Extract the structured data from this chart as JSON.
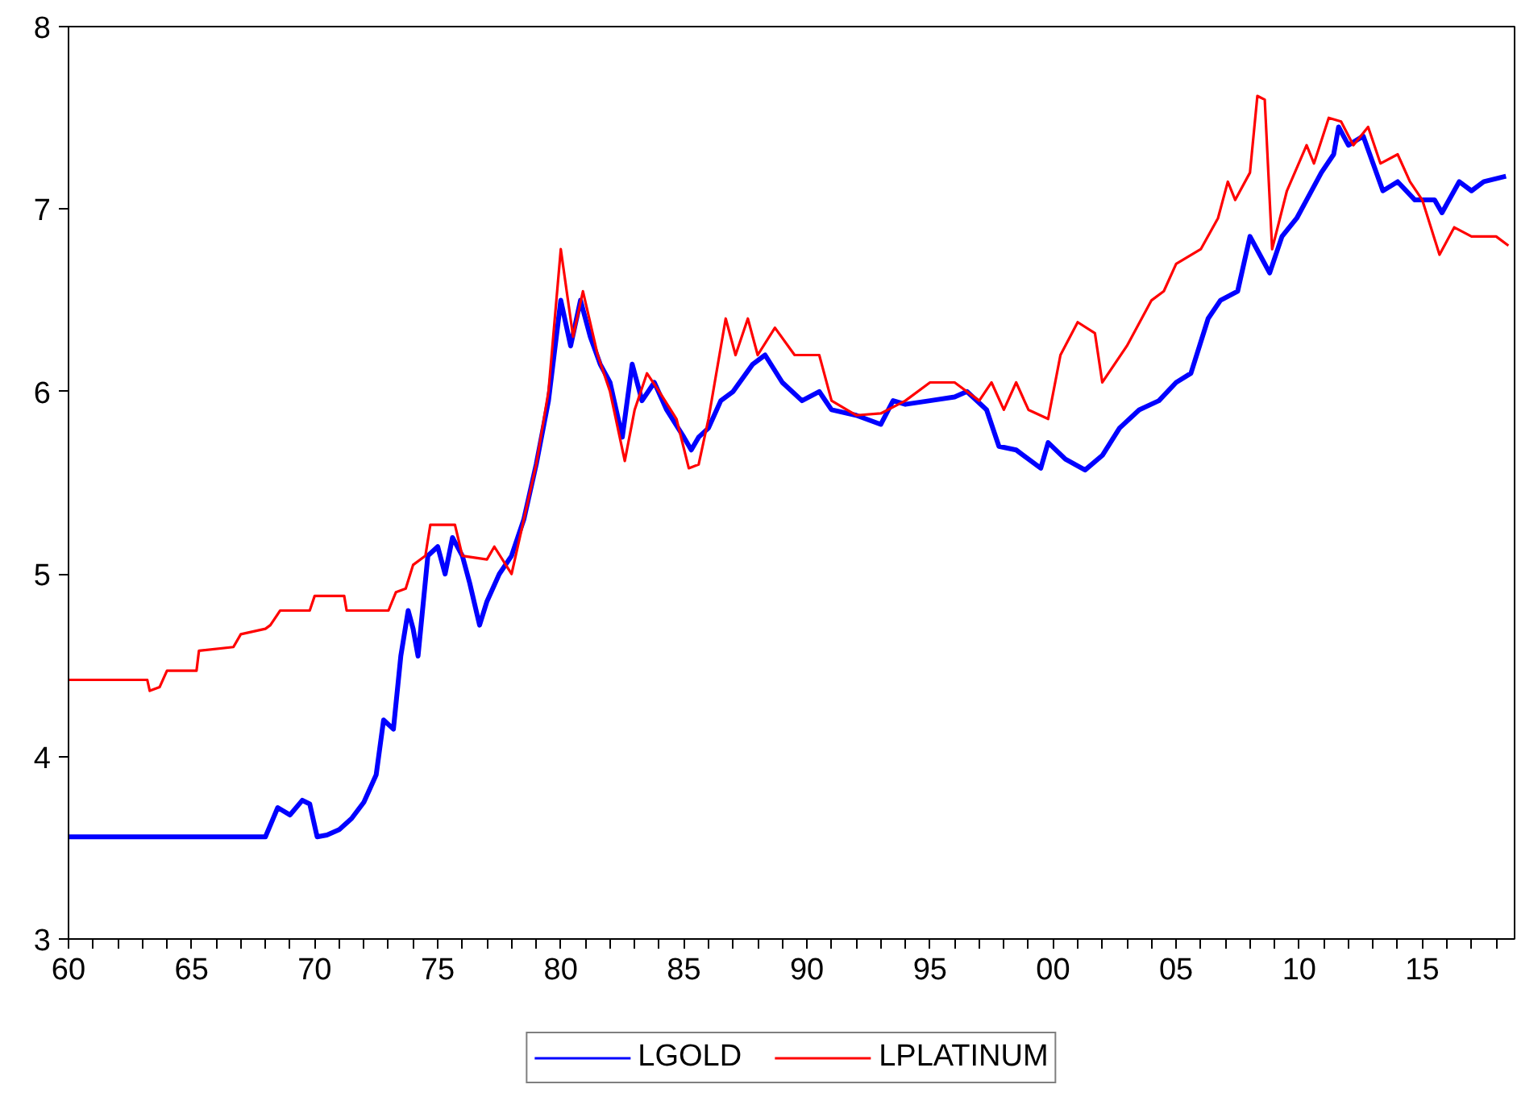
{
  "chart_data": {
    "type": "line",
    "legend": "bottom",
    "grid": false,
    "marker": "none",
    "line_style": "solid",
    "xlim": [
      1960,
      2018.75
    ],
    "ylim": [
      3,
      8
    ],
    "yticks": [
      3,
      4,
      5,
      6,
      7,
      8
    ],
    "xticks": [
      {
        "value": 1960,
        "label": "60"
      },
      {
        "value": 1961,
        "label": null
      },
      {
        "value": 1962,
        "label": null
      },
      {
        "value": 1963,
        "label": null
      },
      {
        "value": 1964,
        "label": null
      },
      {
        "value": 1965,
        "label": "65"
      },
      {
        "value": 1966,
        "label": null
      },
      {
        "value": 1967,
        "label": null
      },
      {
        "value": 1968,
        "label": null
      },
      {
        "value": 1969,
        "label": null
      },
      {
        "value": 1970,
        "label": "70"
      },
      {
        "value": 1971,
        "label": null
      },
      {
        "value": 1972,
        "label": null
      },
      {
        "value": 1973,
        "label": null
      },
      {
        "value": 1974,
        "label": null
      },
      {
        "value": 1975,
        "label": "75"
      },
      {
        "value": 1976,
        "label": null
      },
      {
        "value": 1977,
        "label": null
      },
      {
        "value": 1978,
        "label": null
      },
      {
        "value": 1979,
        "label": null
      },
      {
        "value": 1980,
        "label": "80"
      },
      {
        "value": 1981,
        "label": null
      },
      {
        "value": 1982,
        "label": null
      },
      {
        "value": 1983,
        "label": null
      },
      {
        "value": 1984,
        "label": null
      },
      {
        "value": 1985,
        "label": "85"
      },
      {
        "value": 1986,
        "label": null
      },
      {
        "value": 1987,
        "label": null
      },
      {
        "value": 1988,
        "label": null
      },
      {
        "value": 1989,
        "label": null
      },
      {
        "value": 1990,
        "label": "90"
      },
      {
        "value": 1991,
        "label": null
      },
      {
        "value": 1992,
        "label": null
      },
      {
        "value": 1993,
        "label": null
      },
      {
        "value": 1994,
        "label": null
      },
      {
        "value": 1995,
        "label": "95"
      },
      {
        "value": 1996,
        "label": null
      },
      {
        "value": 1997,
        "label": null
      },
      {
        "value": 1998,
        "label": null
      },
      {
        "value": 1999,
        "label": null
      },
      {
        "value": 2000,
        "label": "00"
      },
      {
        "value": 2001,
        "label": null
      },
      {
        "value": 2002,
        "label": null
      },
      {
        "value": 2003,
        "label": null
      },
      {
        "value": 2004,
        "label": null
      },
      {
        "value": 2005,
        "label": "05"
      },
      {
        "value": 2006,
        "label": null
      },
      {
        "value": 2007,
        "label": null
      },
      {
        "value": 2008,
        "label": null
      },
      {
        "value": 2009,
        "label": null
      },
      {
        "value": 2010,
        "label": "10"
      },
      {
        "value": 2011,
        "label": null
      },
      {
        "value": 2012,
        "label": null
      },
      {
        "value": 2013,
        "label": null
      },
      {
        "value": 2014,
        "label": null
      },
      {
        "value": 2015,
        "label": "15"
      },
      {
        "value": 2016,
        "label": null
      },
      {
        "value": 2017,
        "label": null
      },
      {
        "value": 2018,
        "label": null
      }
    ],
    "series": [
      {
        "name": "LGOLD",
        "color": "#0000ff",
        "x": [
          1960,
          1968,
          1968.5,
          1969,
          1969.5,
          1969.8,
          1970.1,
          1970.5,
          1971,
          1971.5,
          1972,
          1972.5,
          1972.8,
          1973.2,
          1973.5,
          1973.8,
          1974,
          1974.2,
          1974.6,
          1975,
          1975.3,
          1975.6,
          1976,
          1976.3,
          1976.7,
          1977,
          1977.5,
          1978,
          1978.5,
          1979,
          1979.5,
          1980,
          1980.4,
          1980.8,
          1981.2,
          1981.6,
          1982,
          1982.5,
          1982.9,
          1983.3,
          1983.8,
          1984.3,
          1985,
          1985.3,
          1985.6,
          1986,
          1986.5,
          1987,
          1987.8,
          1988.3,
          1989,
          1989.8,
          1990.5,
          1991,
          1992,
          1993,
          1993.5,
          1994,
          1995,
          1996,
          1996.5,
          1997.3,
          1997.8,
          1998.5,
          1999.5,
          1999.8,
          2000.5,
          2001.3,
          2002,
          2002.7,
          2003.5,
          2004.3,
          2005,
          2005.6,
          2006.3,
          2006.8,
          2007.5,
          2008,
          2008.4,
          2008.8,
          2009.3,
          2009.9,
          2010.3,
          2010.9,
          2011.4,
          2011.6,
          2012,
          2012.6,
          2013,
          2013.4,
          2014,
          2014.7,
          2015.5,
          2015.8,
          2016.5,
          2017,
          2017.5,
          2018.4
        ],
        "values": [
          3.56,
          3.56,
          3.72,
          3.68,
          3.76,
          3.74,
          3.56,
          3.57,
          3.6,
          3.66,
          3.75,
          3.9,
          4.2,
          4.15,
          4.55,
          4.8,
          4.7,
          4.55,
          5.1,
          5.15,
          5.0,
          5.2,
          5.1,
          4.95,
          4.72,
          4.85,
          5.0,
          5.1,
          5.3,
          5.6,
          5.95,
          6.5,
          6.25,
          6.5,
          6.3,
          6.15,
          6.05,
          5.75,
          6.15,
          5.95,
          6.05,
          5.9,
          5.75,
          5.68,
          5.75,
          5.8,
          5.95,
          6.0,
          6.15,
          6.2,
          6.05,
          5.95,
          6.0,
          5.9,
          5.87,
          5.82,
          5.95,
          5.93,
          5.95,
          5.97,
          6.0,
          5.9,
          5.7,
          5.68,
          5.58,
          5.72,
          5.63,
          5.57,
          5.65,
          5.8,
          5.9,
          5.95,
          6.05,
          6.1,
          6.4,
          6.5,
          6.55,
          6.85,
          6.75,
          6.65,
          6.85,
          6.95,
          7.05,
          7.2,
          7.3,
          7.45,
          7.35,
          7.4,
          7.25,
          7.1,
          7.15,
          7.05,
          7.05,
          6.98,
          7.15,
          7.1,
          7.15,
          7.18
        ]
      },
      {
        "name": "LPLATINUM",
        "color": "#ff0000",
        "x": [
          1960,
          1963.2,
          1963.3,
          1963.7,
          1964,
          1965.2,
          1965.3,
          1966.7,
          1967,
          1968,
          1968.2,
          1968.6,
          1969.8,
          1970,
          1971.2,
          1971.3,
          1973,
          1973.3,
          1973.7,
          1974,
          1974.5,
          1974.7,
          1975.7,
          1976,
          1977,
          1977.3,
          1978,
          1978.5,
          1979,
          1979.5,
          1980,
          1980.5,
          1980.9,
          1981.5,
          1982,
          1982.6,
          1983,
          1983.5,
          1984,
          1984.7,
          1985.2,
          1985.6,
          1986,
          1986.7,
          1987.1,
          1987.6,
          1988,
          1988.7,
          1989.5,
          1990.5,
          1991,
          1992,
          1993,
          1994,
          1995,
          1996,
          1997,
          1997.5,
          1998,
          1998.5,
          1999,
          1999.8,
          2000.3,
          2001,
          2001.7,
          2002,
          2003,
          2004,
          2004.5,
          2005,
          2006,
          2006.7,
          2007.1,
          2007.4,
          2008,
          2008.3,
          2008.6,
          2008.9,
          2009.5,
          2010.3,
          2010.6,
          2011.2,
          2011.7,
          2012.2,
          2012.8,
          2013.3,
          2014,
          2014.5,
          2015,
          2015.7,
          2016.3,
          2017,
          2018,
          2018.5
        ],
        "values": [
          4.42,
          4.42,
          4.36,
          4.38,
          4.47,
          4.47,
          4.58,
          4.6,
          4.67,
          4.7,
          4.72,
          4.8,
          4.8,
          4.88,
          4.88,
          4.8,
          4.8,
          4.9,
          4.92,
          5.05,
          5.1,
          5.27,
          5.27,
          5.1,
          5.08,
          5.15,
          5.0,
          5.3,
          5.6,
          6.0,
          6.78,
          6.3,
          6.55,
          6.2,
          6.0,
          5.62,
          5.9,
          6.1,
          6.0,
          5.85,
          5.58,
          5.6,
          5.85,
          6.4,
          6.2,
          6.4,
          6.2,
          6.35,
          6.2,
          6.2,
          5.95,
          5.87,
          5.88,
          5.95,
          6.05,
          6.05,
          5.95,
          6.05,
          5.9,
          6.05,
          5.9,
          5.85,
          6.2,
          6.38,
          6.32,
          6.05,
          6.25,
          6.5,
          6.55,
          6.7,
          6.78,
          6.95,
          7.15,
          7.05,
          7.2,
          7.62,
          7.6,
          6.78,
          7.1,
          7.35,
          7.25,
          7.5,
          7.48,
          7.35,
          7.45,
          7.25,
          7.3,
          7.15,
          7.05,
          6.75,
          6.9,
          6.85,
          6.85,
          6.8
        ]
      }
    ]
  }
}
